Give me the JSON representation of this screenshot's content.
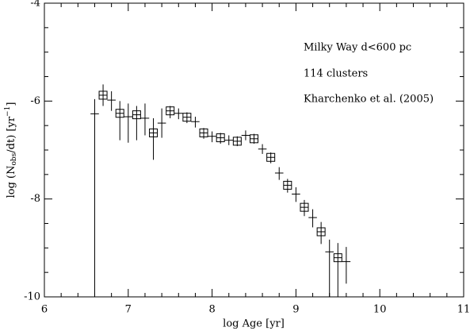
{
  "chart_data": {
    "type": "errorbar-scatter",
    "xlabel": "log Age [yr]",
    "ylabel": {
      "a": "log (N",
      "sub": "obs",
      "b": "/dt)   [yr",
      "sup": "−1",
      "c": "]"
    },
    "annotations": [
      "Milky Way  d<600 pc",
      "114 clusters",
      "Kharchenko et al. (2005)"
    ],
    "x": [
      6.6,
      6.7,
      6.8,
      6.9,
      7.0,
      7.1,
      7.2,
      7.3,
      7.4,
      7.5,
      7.6,
      7.7,
      7.8,
      7.9,
      8.0,
      8.1,
      8.2,
      8.3,
      8.4,
      8.5,
      8.6,
      8.7,
      8.8,
      8.9,
      9.0,
      9.1,
      9.2,
      9.3,
      9.4,
      9.5,
      9.6
    ],
    "values": [
      -6.26,
      -5.88,
      -5.98,
      -6.25,
      -6.32,
      -6.28,
      -6.35,
      -6.65,
      -6.45,
      -6.2,
      -6.25,
      -6.33,
      -6.42,
      -6.65,
      -6.72,
      -6.75,
      -6.8,
      -6.82,
      -6.7,
      -6.77,
      -6.98,
      -7.15,
      -7.47,
      -7.72,
      -7.9,
      -8.17,
      -8.38,
      -8.67,
      -9.08,
      -9.2,
      -9.28
    ],
    "yerr_minus": [
      3.74,
      0.22,
      0.22,
      0.55,
      0.53,
      0.52,
      0.35,
      0.55,
      0.3,
      0.15,
      0.12,
      0.12,
      0.12,
      0.12,
      0.12,
      0.12,
      0.1,
      0.1,
      0.1,
      0.1,
      0.1,
      0.12,
      0.14,
      0.15,
      0.16,
      0.18,
      0.2,
      0.25,
      0.92,
      0.8,
      0.45
    ],
    "yerr_plus": [
      0.3,
      0.22,
      0.18,
      0.25,
      0.27,
      0.18,
      0.3,
      0.3,
      0.3,
      0.1,
      0.1,
      0.1,
      0.1,
      0.1,
      0.1,
      0.1,
      0.1,
      0.1,
      0.1,
      0.1,
      0.1,
      0.1,
      0.12,
      0.13,
      0.14,
      0.15,
      0.17,
      0.2,
      0.25,
      0.3,
      0.3
    ],
    "square": [
      false,
      true,
      false,
      true,
      false,
      true,
      false,
      true,
      false,
      true,
      false,
      true,
      false,
      true,
      false,
      true,
      false,
      true,
      false,
      true,
      false,
      true,
      false,
      true,
      false,
      true,
      false,
      true,
      false,
      true,
      false
    ],
    "xerr": 0.05,
    "color": "#000000",
    "xlim": [
      6,
      11
    ],
    "ylim": [
      -10,
      -4
    ],
    "xticks": [
      6,
      7,
      8,
      9,
      10,
      11
    ],
    "yticks": [
      -10,
      -8,
      -6,
      -4
    ],
    "xminorticks": [
      6.2,
      6.4,
      6.6,
      6.8,
      7.2,
      7.4,
      7.6,
      7.8,
      8.2,
      8.4,
      8.6,
      8.8,
      9.2,
      9.4,
      9.6,
      9.8,
      10.2,
      10.4,
      10.6,
      10.8
    ],
    "yminorticks": [
      -9.5,
      -9,
      -8.5,
      -7.5,
      -7,
      -6.5,
      -5.5,
      -5,
      -4.5
    ]
  }
}
